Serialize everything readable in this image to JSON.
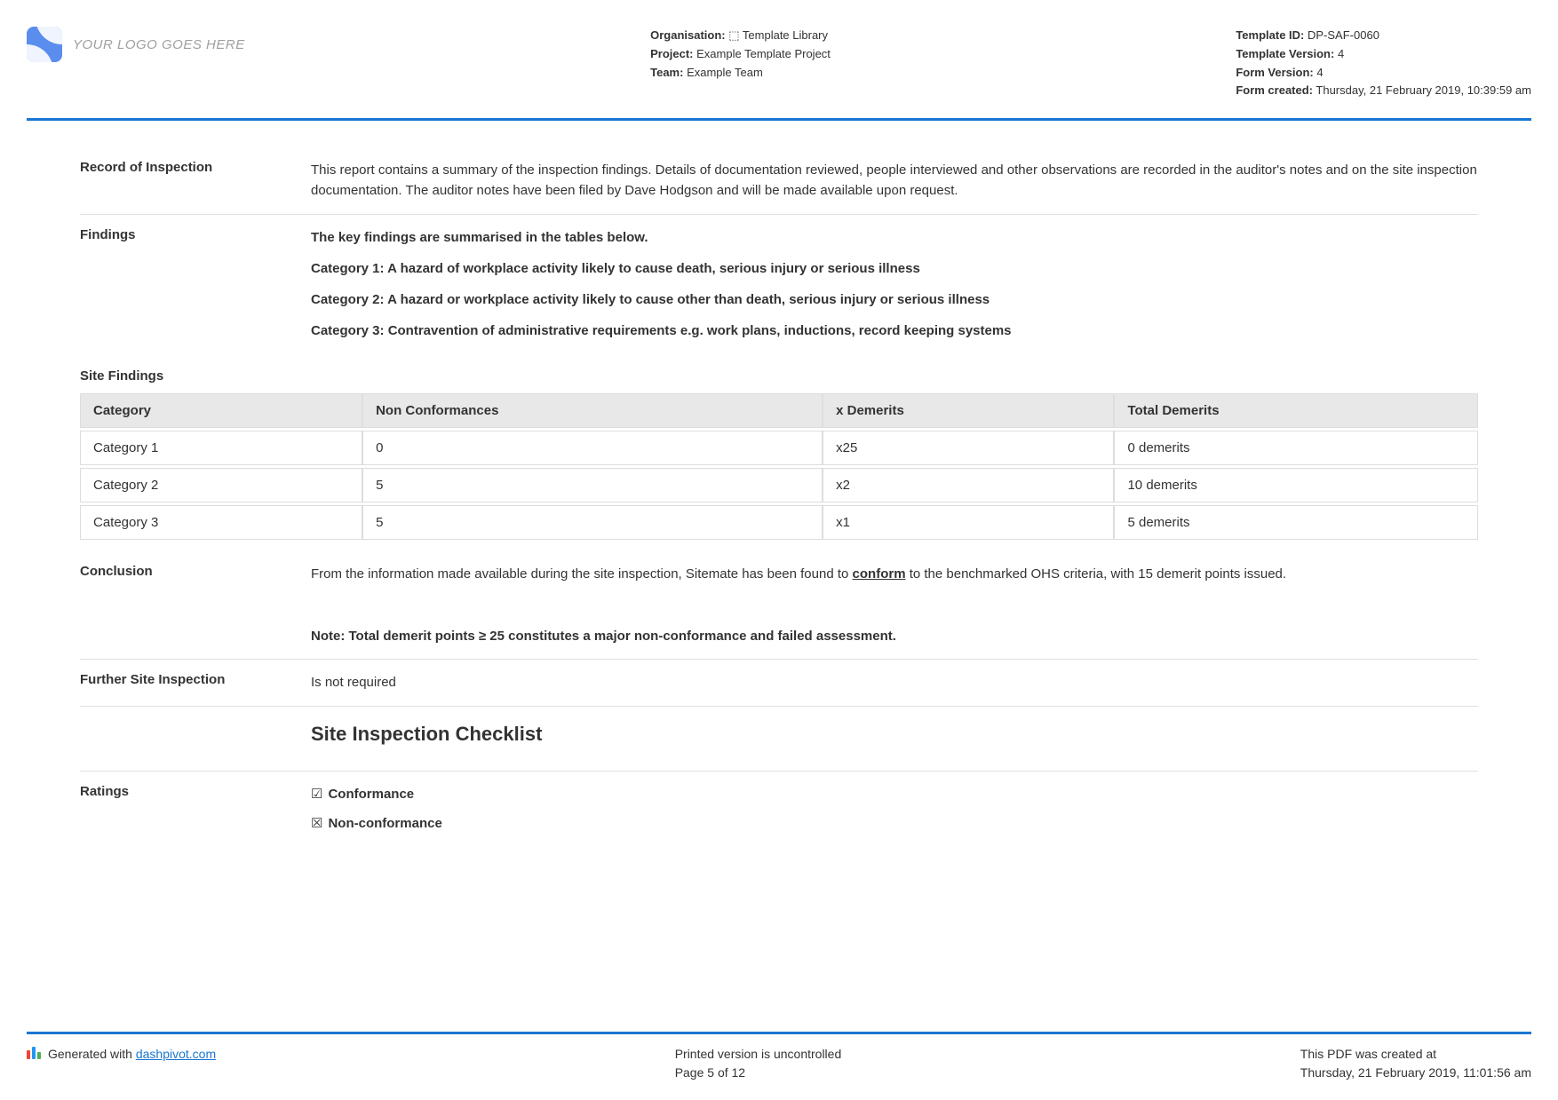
{
  "logo": {
    "placeholder": "YOUR LOGO GOES HERE"
  },
  "header_meta_left": {
    "organisation_label": "Organisation:",
    "organisation_value": "⬚ Template Library",
    "project_label": "Project:",
    "project_value": "Example Template Project",
    "team_label": "Team:",
    "team_value": "Example Team"
  },
  "header_meta_right": {
    "template_id_label": "Template ID:",
    "template_id_value": "DP-SAF-0060",
    "template_version_label": "Template Version:",
    "template_version_value": "4",
    "form_version_label": "Form Version:",
    "form_version_value": "4",
    "form_created_label": "Form created:",
    "form_created_value": "Thursday, 21 February 2019, 10:39:59 am"
  },
  "sections": {
    "record_label": "Record of Inspection",
    "record_body": "This report contains a summary of the inspection findings. Details of documentation reviewed, people interviewed and other observations are recorded in the auditor's notes and on the site inspection documentation. The auditor notes have been filed by Dave Hodgson and will be made available upon request.",
    "findings_label": "Findings",
    "findings_intro": "The key findings are summarised in the tables below.",
    "findings_cat1": "Category 1: A hazard of workplace activity likely to cause death, serious injury or serious illness",
    "findings_cat2": "Category 2: A hazard or workplace activity likely to cause other than death, serious injury or serious illness",
    "findings_cat3": "Category 3: Contravention of administrative requirements e.g. work plans, inductions, record keeping systems",
    "table_title": "Site Findings",
    "table_headers": {
      "col1": "Category",
      "col2": "Non Conformances",
      "col3": "x Demerits",
      "col4": "Total Demerits"
    },
    "table_rows": [
      {
        "category": "Category 1",
        "non_conformances": "0",
        "x_demerits": "x25",
        "total": "0 demerits"
      },
      {
        "category": "Category 2",
        "non_conformances": "5",
        "x_demerits": "x2",
        "total": "10 demerits"
      },
      {
        "category": "Category 3",
        "non_conformances": "5",
        "x_demerits": "x1",
        "total": "5 demerits"
      }
    ],
    "conclusion_label": "Conclusion",
    "conclusion_body_pre": "From the information made available during the site inspection, Sitemate has been found to ",
    "conclusion_conform": "conform",
    "conclusion_body_post": " to the benchmarked OHS criteria, with 15 demerit points issued.",
    "conclusion_note": "Note: Total demerit points ≥ 25 constitutes a major non-conformance and failed assessment.",
    "further_label": "Further Site Inspection",
    "further_value": "Is not required",
    "checklist_title": "Site Inspection Checklist",
    "ratings_label": "Ratings",
    "rating_conformance_symbol": "☑",
    "rating_conformance_text": "Conformance",
    "rating_nonconformance_symbol": "☒",
    "rating_nonconformance_text": "Non-conformance"
  },
  "footer": {
    "generated_prefix": "Generated with ",
    "generated_link": "dashpivot.com",
    "printed": "Printed version is uncontrolled",
    "page": "Page 5 of 12",
    "created_label": "This PDF was created at",
    "created_value": "Thursday, 21 February 2019, 11:01:56 am"
  },
  "colors": {
    "accent": "#1976d2",
    "header_bg": "#e8e8e8",
    "border": "#e0e0e0",
    "text": "#333333"
  }
}
